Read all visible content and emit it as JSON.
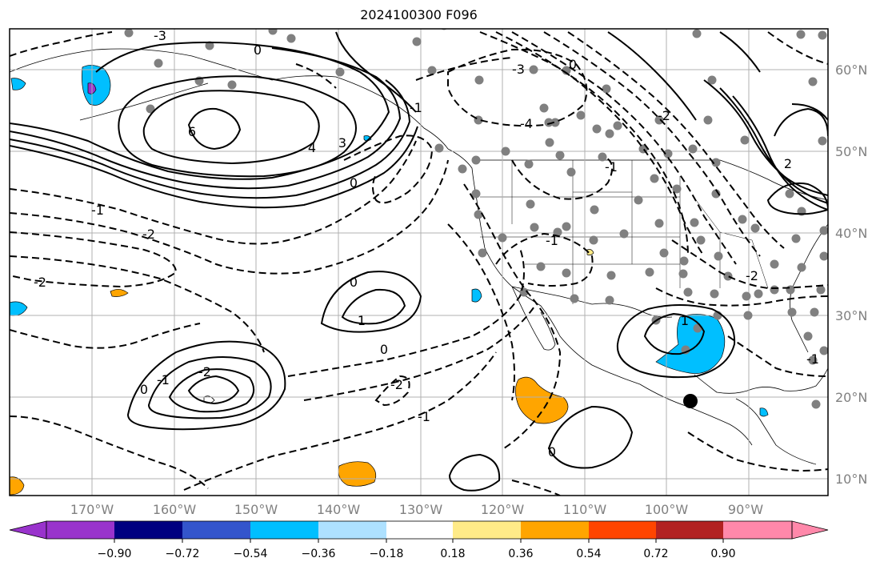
{
  "title": "2024100300 F096",
  "map": {
    "lon_labels": [
      "170°W",
      "160°W",
      "150°W",
      "140°W",
      "130°W",
      "120°W",
      "110°W",
      "100°W",
      "90°W"
    ],
    "lat_labels": [
      "60°N",
      "50°N",
      "40°N",
      "30°N",
      "20°N",
      "10°N"
    ],
    "contour_labels": [
      "0",
      "-3",
      "6",
      "4",
      "3",
      "-1",
      "-2",
      "-2",
      "0",
      "-1",
      "-3",
      "-4",
      "0",
      "-1",
      "-2",
      "-2",
      "-1",
      "-2",
      "0",
      "0",
      "-1",
      "1",
      "-2",
      "-1",
      "-1",
      "0",
      "1",
      "2",
      "0"
    ],
    "marker": "black-dot"
  },
  "colorbar": {
    "ticks": [
      "−0.90",
      "−0.72",
      "−0.54",
      "−0.36",
      "−0.18",
      "0.18",
      "0.36",
      "0.54",
      "0.72",
      "0.90"
    ],
    "colors": [
      "#9933cc",
      "#000080",
      "#3355cc",
      "#00bfff",
      "#aee1ff",
      "#ffffff",
      "#ffeb88",
      "#ffa500",
      "#ff4500",
      "#b22222",
      "#ff88aa"
    ]
  }
}
